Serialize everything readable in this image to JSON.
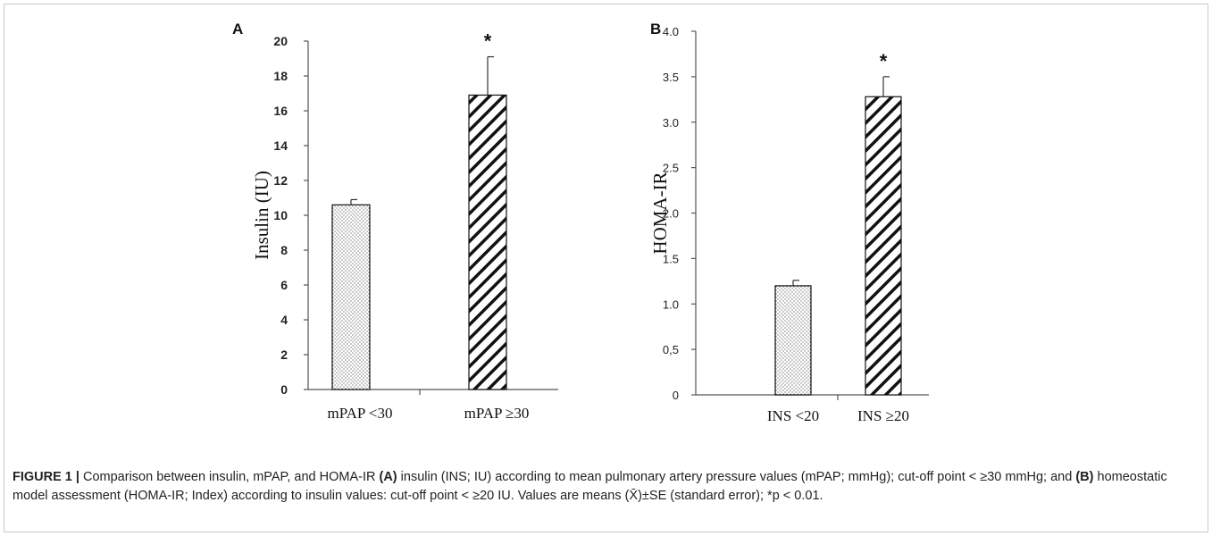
{
  "chart_data": [
    {
      "type": "bar",
      "panel_label": "A",
      "categories": [
        "mPAP <30",
        "mPAP ≥30"
      ],
      "values": [
        10.6,
        16.9
      ],
      "errors": [
        0.3,
        2.2
      ],
      "significance": [
        "",
        "*"
      ],
      "patterns": [
        "dots",
        "diagonal"
      ],
      "ylabel": "Insulin (IU)",
      "ylim": [
        0,
        20
      ],
      "yticks": [
        0,
        2,
        4,
        6,
        8,
        10,
        12,
        14,
        16,
        18,
        20
      ],
      "ytick_labels": [
        "0",
        "2",
        "4",
        "6",
        "8",
        "10",
        "12",
        "14",
        "16",
        "18",
        "20"
      ],
      "grid": false
    },
    {
      "type": "bar",
      "panel_label": "B",
      "categories": [
        "INS <20",
        "INS ≥20"
      ],
      "values": [
        1.2,
        3.28
      ],
      "errors": [
        0.06,
        0.22
      ],
      "significance": [
        "",
        "*"
      ],
      "patterns": [
        "dots",
        "diagonal"
      ],
      "ylabel": "HOMA-IR",
      "ylim": [
        0,
        4
      ],
      "yticks": [
        0,
        0.5,
        1,
        1.5,
        2,
        2.5,
        3,
        3.5,
        4
      ],
      "ytick_labels": [
        "0",
        "0,5",
        "1.0",
        "1.5",
        "2.0",
        "2.5",
        "3.0",
        "3.5",
        "4.0"
      ],
      "grid": false
    }
  ],
  "caption": {
    "label": "FIGURE 1 |",
    "t1": " Comparison between insulin, mPAP, and HOMA-IR ",
    "a": "(A)",
    "t2": " insulin (INS; IU) according to mean pulmonary artery pressure values (mPAP; mmHg); cut-off point < ≥30 mmHg; and ",
    "b": "(B)",
    "t3": " homeostatic model assessment (HOMA-IR; Index) according to insulin values: cut-off point < ≥20 IU. Values are means (X̄)±SE (standard error); *p < 0.01."
  },
  "colors": {
    "axis": "#555555",
    "bar_stroke": "#111111",
    "text": "#111111"
  }
}
